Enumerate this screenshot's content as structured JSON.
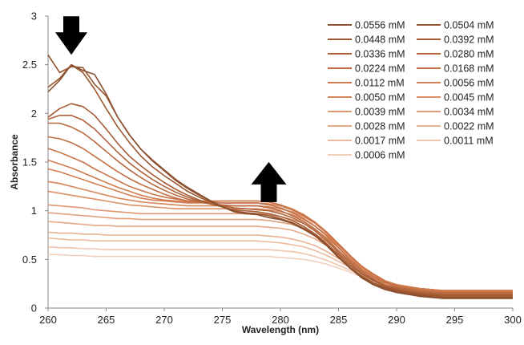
{
  "chart_data": {
    "type": "line",
    "xlabel": "Wavelength (nm)",
    "ylabel": "Absorbance",
    "xlim": [
      260,
      300
    ],
    "ylim": [
      0,
      3
    ],
    "x_ticks": [
      260,
      265,
      270,
      275,
      280,
      285,
      290,
      295,
      300
    ],
    "y_ticks": [
      0,
      0.5,
      1,
      1.5,
      2,
      2.5,
      3
    ],
    "x_tick_labels": [
      "260",
      "265",
      "270",
      "275",
      "280",
      "285",
      "290",
      "295",
      "300"
    ],
    "y_tick_labels": [
      "0",
      "0.5",
      "1",
      "1.5",
      "2",
      "2.5",
      "3"
    ],
    "grid": false,
    "legend_position": "top-right",
    "x": [
      260,
      261,
      262,
      263,
      264,
      265,
      266,
      267,
      268,
      269,
      270,
      271,
      272,
      273,
      274,
      275,
      276,
      277,
      278,
      279,
      280,
      281,
      282,
      283,
      284,
      285,
      286,
      287,
      288,
      289,
      290,
      291,
      292,
      293,
      294,
      295,
      296,
      297,
      298,
      299,
      300
    ],
    "annotations": [
      {
        "label": "down-arrow",
        "x": 262,
        "y": 2.85,
        "direction": "down"
      },
      {
        "label": "up-arrow",
        "x": 279,
        "y": 1.32,
        "direction": "up"
      }
    ],
    "series": [
      {
        "name": "0.0556 mM",
        "color": "#8a4f2e",
        "values": [
          2.22,
          2.34,
          2.5,
          2.44,
          2.4,
          2.2,
          1.96,
          1.78,
          1.63,
          1.52,
          1.42,
          1.32,
          1.24,
          1.17,
          1.1,
          1.04,
          0.99,
          0.97,
          0.96,
          0.93,
          0.91,
          0.87,
          0.81,
          0.74,
          0.64,
          0.52,
          0.41,
          0.31,
          0.24,
          0.19,
          0.16,
          0.14,
          0.12,
          0.11,
          0.1,
          0.1,
          0.1,
          0.1,
          0.1,
          0.1,
          0.1
        ]
      },
      {
        "name": "0.0504 mM",
        "color": "#93532f",
        "values": [
          2.6,
          2.42,
          2.48,
          2.47,
          2.3,
          2.18,
          1.96,
          1.78,
          1.63,
          1.51,
          1.41,
          1.31,
          1.23,
          1.16,
          1.1,
          1.04,
          1.0,
          0.97,
          0.96,
          0.93,
          0.91,
          0.87,
          0.81,
          0.74,
          0.64,
          0.52,
          0.41,
          0.32,
          0.25,
          0.2,
          0.17,
          0.15,
          0.13,
          0.12,
          0.11,
          0.11,
          0.11,
          0.11,
          0.11,
          0.11,
          0.11
        ]
      },
      {
        "name": "0.0448 mM",
        "color": "#9c5832",
        "values": [
          2.27,
          2.36,
          2.5,
          2.42,
          2.25,
          2.05,
          1.86,
          1.7,
          1.56,
          1.45,
          1.36,
          1.28,
          1.2,
          1.14,
          1.09,
          1.04,
          1.0,
          0.98,
          0.97,
          0.95,
          0.92,
          0.88,
          0.82,
          0.75,
          0.65,
          0.53,
          0.42,
          0.33,
          0.26,
          0.21,
          0.18,
          0.16,
          0.14,
          0.13,
          0.12,
          0.12,
          0.12,
          0.12,
          0.12,
          0.12,
          0.12
        ]
      },
      {
        "name": "0.0392 mM",
        "color": "#a65d35",
        "values": [
          1.96,
          2.05,
          2.1,
          2.07,
          1.98,
          1.84,
          1.69,
          1.56,
          1.46,
          1.37,
          1.29,
          1.22,
          1.16,
          1.11,
          1.07,
          1.04,
          1.01,
          1.0,
          0.99,
          0.97,
          0.94,
          0.9,
          0.84,
          0.76,
          0.66,
          0.55,
          0.44,
          0.35,
          0.28,
          0.22,
          0.19,
          0.17,
          0.15,
          0.14,
          0.13,
          0.13,
          0.13,
          0.13,
          0.13,
          0.13,
          0.13
        ]
      },
      {
        "name": "0.0336 mM",
        "color": "#b0633a",
        "values": [
          1.94,
          1.98,
          1.98,
          1.93,
          1.84,
          1.72,
          1.6,
          1.49,
          1.4,
          1.32,
          1.25,
          1.19,
          1.14,
          1.1,
          1.07,
          1.05,
          1.03,
          1.02,
          1.01,
          1.0,
          0.97,
          0.93,
          0.87,
          0.79,
          0.69,
          0.57,
          0.46,
          0.36,
          0.29,
          0.23,
          0.2,
          0.18,
          0.16,
          0.15,
          0.14,
          0.14,
          0.14,
          0.14,
          0.14,
          0.14,
          0.14
        ]
      },
      {
        "name": "0.0280 mM",
        "color": "#ba693f",
        "values": [
          1.9,
          1.9,
          1.86,
          1.8,
          1.71,
          1.61,
          1.51,
          1.42,
          1.34,
          1.27,
          1.21,
          1.16,
          1.12,
          1.09,
          1.07,
          1.06,
          1.05,
          1.05,
          1.05,
          1.03,
          1.0,
          0.95,
          0.89,
          0.81,
          0.71,
          0.59,
          0.48,
          0.38,
          0.3,
          0.24,
          0.21,
          0.19,
          0.17,
          0.16,
          0.15,
          0.15,
          0.15,
          0.15,
          0.15,
          0.15,
          0.15
        ]
      },
      {
        "name": "0.0224 mM",
        "color": "#c26f43",
        "values": [
          1.76,
          1.74,
          1.7,
          1.64,
          1.56,
          1.48,
          1.4,
          1.33,
          1.27,
          1.22,
          1.17,
          1.13,
          1.1,
          1.09,
          1.08,
          1.08,
          1.08,
          1.08,
          1.08,
          1.06,
          1.03,
          0.98,
          0.92,
          0.84,
          0.74,
          0.62,
          0.5,
          0.4,
          0.32,
          0.26,
          0.22,
          0.2,
          0.18,
          0.17,
          0.16,
          0.16,
          0.16,
          0.16,
          0.16,
          0.16,
          0.16
        ]
      },
      {
        "name": "0.0168 mM",
        "color": "#c97448",
        "values": [
          1.64,
          1.6,
          1.55,
          1.5,
          1.43,
          1.37,
          1.31,
          1.25,
          1.21,
          1.17,
          1.14,
          1.12,
          1.1,
          1.1,
          1.1,
          1.1,
          1.1,
          1.1,
          1.1,
          1.09,
          1.06,
          1.01,
          0.95,
          0.87,
          0.77,
          0.65,
          0.53,
          0.42,
          0.34,
          0.27,
          0.23,
          0.21,
          0.19,
          0.18,
          0.17,
          0.17,
          0.17,
          0.17,
          0.17,
          0.17,
          0.17
        ]
      },
      {
        "name": "0.0112 mM",
        "color": "#d07a4d",
        "values": [
          1.52,
          1.48,
          1.44,
          1.39,
          1.34,
          1.29,
          1.24,
          1.2,
          1.16,
          1.13,
          1.11,
          1.1,
          1.09,
          1.09,
          1.09,
          1.1,
          1.1,
          1.1,
          1.1,
          1.09,
          1.06,
          1.02,
          0.96,
          0.88,
          0.78,
          0.66,
          0.54,
          0.43,
          0.35,
          0.28,
          0.24,
          0.22,
          0.2,
          0.19,
          0.18,
          0.18,
          0.18,
          0.18,
          0.18,
          0.18,
          0.18
        ]
      },
      {
        "name": "0.0056 mM",
        "color": "#d47f53",
        "values": [
          1.43,
          1.4,
          1.36,
          1.32,
          1.28,
          1.24,
          1.2,
          1.16,
          1.13,
          1.11,
          1.1,
          1.09,
          1.08,
          1.08,
          1.08,
          1.08,
          1.08,
          1.08,
          1.08,
          1.07,
          1.05,
          1.01,
          0.96,
          0.88,
          0.78,
          0.66,
          0.54,
          0.43,
          0.35,
          0.28,
          0.24,
          0.22,
          0.2,
          0.19,
          0.18,
          0.18,
          0.18,
          0.18,
          0.18,
          0.18,
          0.18
        ]
      },
      {
        "name": "0.0050 mM",
        "color": "#d8865c",
        "values": [
          1.3,
          1.28,
          1.25,
          1.22,
          1.19,
          1.16,
          1.13,
          1.11,
          1.09,
          1.08,
          1.07,
          1.06,
          1.05,
          1.05,
          1.05,
          1.05,
          1.05,
          1.05,
          1.05,
          1.04,
          1.02,
          0.99,
          0.94,
          0.87,
          0.77,
          0.66,
          0.54,
          0.43,
          0.35,
          0.28,
          0.24,
          0.22,
          0.2,
          0.19,
          0.18,
          0.18,
          0.18,
          0.18,
          0.18,
          0.18,
          0.18
        ]
      },
      {
        "name": "0.0045 mM",
        "color": "#dc8e65",
        "values": [
          1.2,
          1.18,
          1.16,
          1.14,
          1.12,
          1.1,
          1.08,
          1.06,
          1.05,
          1.04,
          1.03,
          1.02,
          1.02,
          1.02,
          1.02,
          1.02,
          1.02,
          1.02,
          1.02,
          1.01,
          0.99,
          0.96,
          0.91,
          0.84,
          0.75,
          0.64,
          0.53,
          0.43,
          0.35,
          0.28,
          0.24,
          0.22,
          0.2,
          0.19,
          0.18,
          0.18,
          0.18,
          0.18,
          0.18,
          0.18,
          0.18
        ]
      },
      {
        "name": "0.0039 mM",
        "color": "#e0966f",
        "values": [
          1.06,
          1.05,
          1.04,
          1.03,
          1.01,
          1.0,
          0.99,
          0.98,
          0.97,
          0.97,
          0.97,
          0.97,
          0.97,
          0.97,
          0.97,
          0.97,
          0.97,
          0.97,
          0.97,
          0.96,
          0.94,
          0.91,
          0.87,
          0.8,
          0.72,
          0.62,
          0.51,
          0.42,
          0.34,
          0.28,
          0.24,
          0.22,
          0.2,
          0.19,
          0.18,
          0.18,
          0.18,
          0.18,
          0.18,
          0.18,
          0.18
        ]
      },
      {
        "name": "0.0034 mM",
        "color": "#e39f79",
        "values": [
          0.98,
          0.97,
          0.96,
          0.95,
          0.94,
          0.93,
          0.92,
          0.92,
          0.91,
          0.91,
          0.91,
          0.91,
          0.91,
          0.91,
          0.91,
          0.91,
          0.91,
          0.91,
          0.91,
          0.9,
          0.88,
          0.86,
          0.82,
          0.76,
          0.68,
          0.59,
          0.49,
          0.4,
          0.33,
          0.27,
          0.24,
          0.22,
          0.2,
          0.19,
          0.18,
          0.18,
          0.18,
          0.18,
          0.18,
          0.18,
          0.18
        ]
      },
      {
        "name": "0.0028 mM",
        "color": "#e6a885",
        "values": [
          0.89,
          0.88,
          0.87,
          0.86,
          0.85,
          0.85,
          0.84,
          0.84,
          0.84,
          0.84,
          0.84,
          0.84,
          0.84,
          0.84,
          0.84,
          0.84,
          0.84,
          0.84,
          0.84,
          0.83,
          0.82,
          0.8,
          0.76,
          0.71,
          0.64,
          0.56,
          0.47,
          0.39,
          0.32,
          0.27,
          0.24,
          0.22,
          0.2,
          0.19,
          0.18,
          0.18,
          0.18,
          0.18,
          0.18,
          0.18,
          0.18
        ]
      },
      {
        "name": "0.0022 mM",
        "color": "#e9b192",
        "values": [
          0.78,
          0.77,
          0.77,
          0.76,
          0.76,
          0.75,
          0.75,
          0.75,
          0.75,
          0.75,
          0.75,
          0.75,
          0.75,
          0.75,
          0.75,
          0.75,
          0.75,
          0.75,
          0.75,
          0.74,
          0.73,
          0.71,
          0.68,
          0.64,
          0.58,
          0.51,
          0.44,
          0.37,
          0.31,
          0.26,
          0.23,
          0.21,
          0.2,
          0.19,
          0.18,
          0.18,
          0.18,
          0.18,
          0.18,
          0.18,
          0.18
        ]
      },
      {
        "name": "0.0017 mM",
        "color": "#ecbb9f",
        "values": [
          0.72,
          0.71,
          0.7,
          0.7,
          0.69,
          0.69,
          0.69,
          0.69,
          0.69,
          0.69,
          0.69,
          0.69,
          0.69,
          0.69,
          0.69,
          0.69,
          0.69,
          0.69,
          0.69,
          0.68,
          0.67,
          0.65,
          0.63,
          0.59,
          0.54,
          0.48,
          0.42,
          0.36,
          0.3,
          0.26,
          0.23,
          0.21,
          0.2,
          0.19,
          0.18,
          0.18,
          0.18,
          0.18,
          0.18,
          0.18,
          0.18
        ]
      },
      {
        "name": "0.0011 mM",
        "color": "#efc5ad",
        "values": [
          0.63,
          0.62,
          0.62,
          0.61,
          0.61,
          0.6,
          0.6,
          0.6,
          0.6,
          0.6,
          0.6,
          0.6,
          0.6,
          0.6,
          0.6,
          0.6,
          0.6,
          0.6,
          0.6,
          0.6,
          0.59,
          0.58,
          0.56,
          0.53,
          0.49,
          0.44,
          0.39,
          0.34,
          0.29,
          0.25,
          0.22,
          0.21,
          0.2,
          0.19,
          0.18,
          0.18,
          0.18,
          0.18,
          0.18,
          0.18,
          0.18
        ]
      },
      {
        "name": "0.0006 mM",
        "color": "#f2d0bc",
        "values": [
          0.55,
          0.55,
          0.54,
          0.54,
          0.53,
          0.53,
          0.53,
          0.53,
          0.53,
          0.53,
          0.53,
          0.53,
          0.53,
          0.53,
          0.53,
          0.53,
          0.53,
          0.53,
          0.53,
          0.53,
          0.52,
          0.51,
          0.5,
          0.48,
          0.45,
          0.41,
          0.37,
          0.32,
          0.28,
          0.24,
          0.22,
          0.2,
          0.19,
          0.18,
          0.17,
          0.17,
          0.17,
          0.17,
          0.17,
          0.17,
          0.17
        ]
      }
    ]
  }
}
